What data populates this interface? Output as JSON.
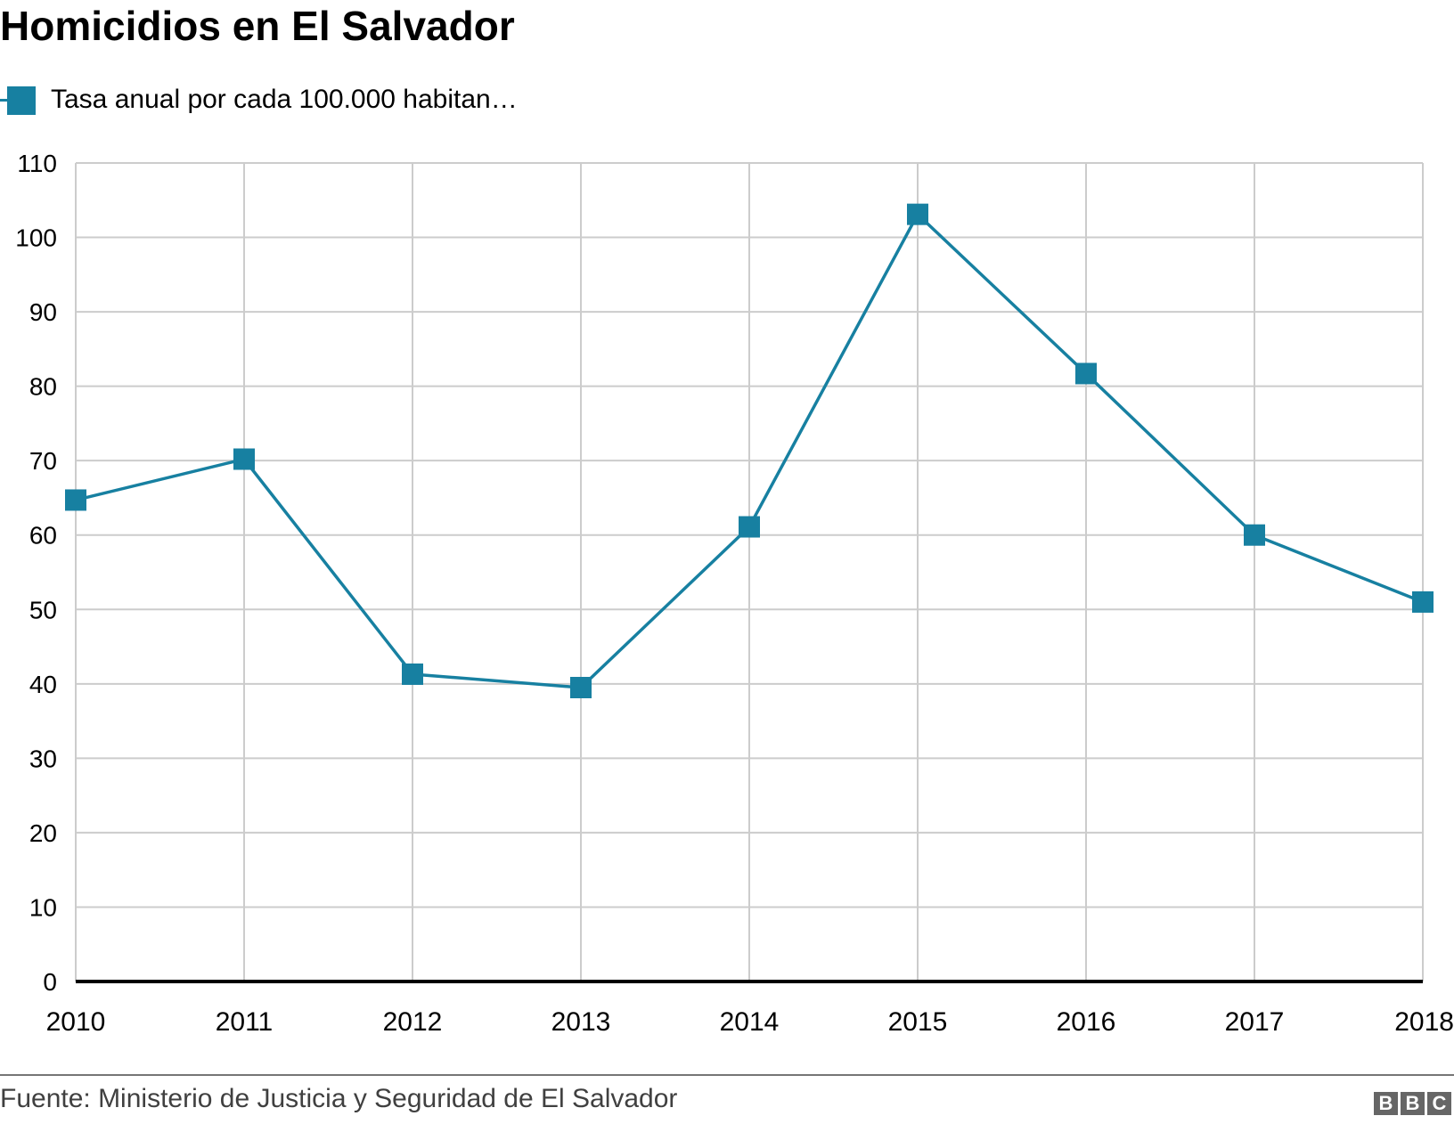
{
  "header": {
    "title": "Homicidios en El Salvador"
  },
  "legend": {
    "items": [
      {
        "label": "Tasa anual por cada 100.000 habitan…",
        "color": "#1780a1",
        "marker": "square"
      }
    ]
  },
  "footer": {
    "source": "Fuente: Ministerio de Justicia y Seguridad de El Salvador",
    "logo_letters": [
      "B",
      "B",
      "C"
    ]
  },
  "colors": {
    "series": "#1780a1",
    "grid": "#cccccc",
    "baseline": "#000000",
    "footer_rule": "#767676",
    "logo": "#666666"
  },
  "chart_data": {
    "type": "line",
    "title": "Homicidios en El Salvador",
    "xlabel": "",
    "ylabel": "",
    "categories": [
      "2010",
      "2011",
      "2012",
      "2013",
      "2014",
      "2015",
      "2016",
      "2017",
      "2018"
    ],
    "series": [
      {
        "name": "Tasa anual por cada 100.000 habitan…",
        "values": [
          64.7,
          70.2,
          41.3,
          39.5,
          61.1,
          103.1,
          81.7,
          60.0,
          51.0
        ],
        "color": "#1780a1",
        "marker": "square"
      }
    ],
    "ylim": [
      0,
      110
    ],
    "yticks": [
      0,
      10,
      20,
      30,
      40,
      50,
      60,
      70,
      80,
      90,
      100,
      110
    ],
    "grid": true,
    "legend_position": "top-left",
    "source": "Fuente: Ministerio de Justicia y Seguridad de El Salvador"
  }
}
